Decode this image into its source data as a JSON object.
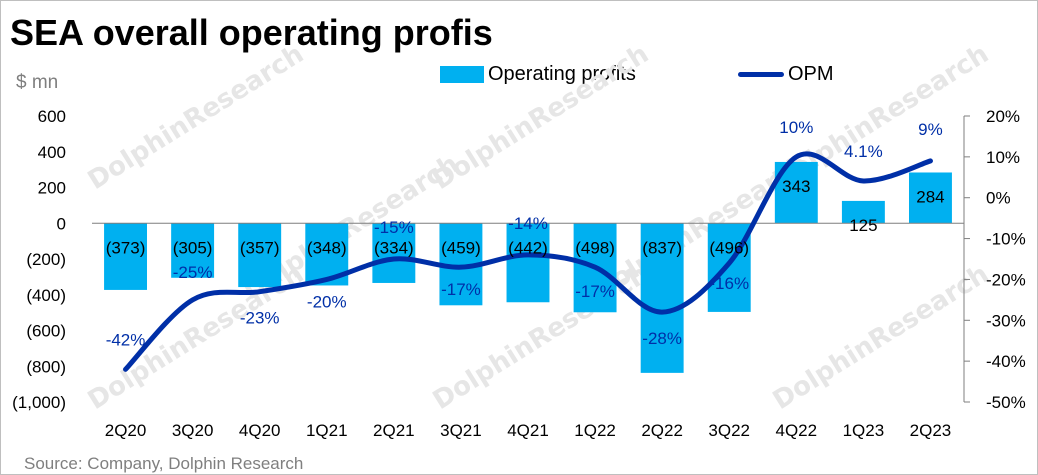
{
  "title": "SEA overall operating profis",
  "unit_label": "$ mn",
  "source": "Source: Company, Dolphin Research",
  "watermark": "DolphinResearch",
  "colors": {
    "bar": "#00b0f0",
    "line": "#002fa7",
    "axis": "#7f7f7f"
  },
  "chart_data": {
    "type": "bar",
    "categories": [
      "2Q20",
      "3Q20",
      "4Q20",
      "1Q21",
      "2Q21",
      "3Q21",
      "4Q21",
      "1Q22",
      "2Q22",
      "3Q22",
      "4Q22",
      "1Q23",
      "2Q23"
    ],
    "series": [
      {
        "name": "Operating profits",
        "type": "bar",
        "axis": "left",
        "values": [
          -373,
          -305,
          -357,
          -348,
          -334,
          -459,
          -442,
          -498,
          -837,
          -496,
          343,
          125,
          284
        ],
        "labels": [
          "(373)",
          "(305)",
          "(357)",
          "(348)",
          "(334)",
          "(459)",
          "(442)",
          "(498)",
          "(837)",
          "(496)",
          "343",
          "125",
          "284"
        ]
      },
      {
        "name": "OPM",
        "type": "line",
        "axis": "right",
        "values": [
          -42,
          -25,
          -23,
          -20,
          -15,
          -17,
          -14,
          -17,
          -28,
          -16,
          10,
          4.1,
          9
        ],
        "labels": [
          "-42%",
          "-25%",
          "-23%",
          "-20%",
          "-15%",
          "-17%",
          "-14%",
          "-17%",
          "-28%",
          "-16%",
          "10%",
          "4.1%",
          "9%"
        ]
      }
    ],
    "left_axis": {
      "ylim": [
        -1000,
        600
      ],
      "ticks": [
        600,
        400,
        200,
        0,
        -200,
        -400,
        -600,
        -800,
        -1000
      ],
      "tick_labels": [
        "600",
        "400",
        "200",
        "0",
        "(200)",
        "(400)",
        "(600)",
        "(800)",
        "(1,000)"
      ]
    },
    "right_axis": {
      "ylim": [
        -50,
        20
      ],
      "ticks": [
        20,
        10,
        0,
        -10,
        -20,
        -30,
        -40,
        -50
      ],
      "tick_labels": [
        "20%",
        "10%",
        "0%",
        "-10%",
        "-20%",
        "-30%",
        "-40%",
        "-50%"
      ]
    },
    "grid": false,
    "legend_position": "top"
  }
}
